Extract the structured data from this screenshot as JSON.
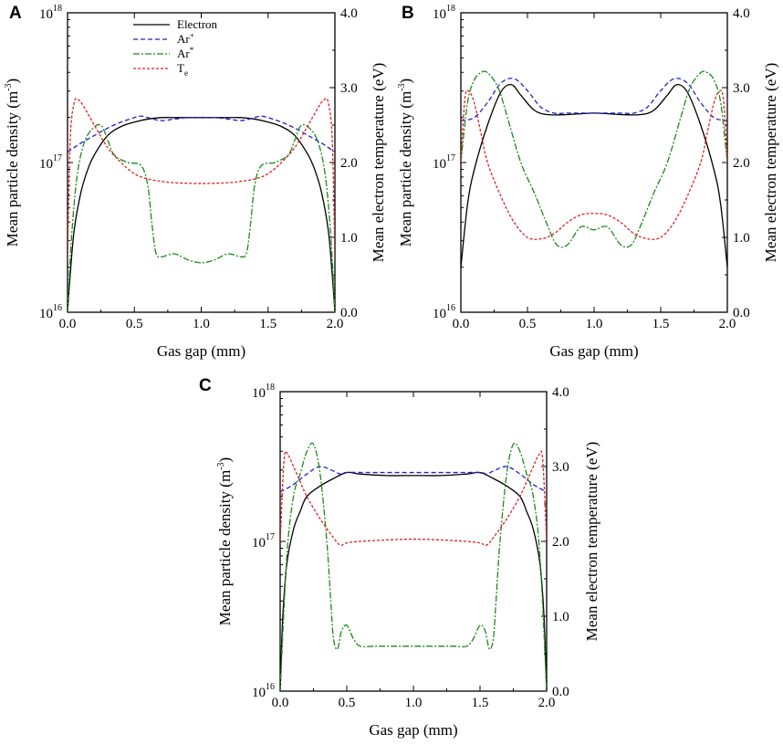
{
  "figure": {
    "legend": {
      "electron": "Electron",
      "ar_ion_base": "Ar",
      "ar_ion_sup": "+",
      "ar_meta_base": "Ar",
      "ar_meta_sup": "*",
      "te_base": "T",
      "te_sub": "e"
    },
    "colors": {
      "electron": "#000000",
      "ar_ion": "#1f1fcf",
      "ar_meta": "#1a8a1a",
      "te": "#e02020"
    }
  },
  "chart_data": [
    {
      "panel": "A",
      "type": "line",
      "xlabel": "Gas gap (mm)",
      "ylabel_left": "Mean particle density (m",
      "ylabel_left_sup": "-3",
      "ylabel_left_close": ")",
      "ylabel_right": "Mean electron temperature (eV)",
      "xlim": [
        0,
        2
      ],
      "y_left_log": [
        16,
        18
      ],
      "ylim_right": [
        0,
        4
      ],
      "xticks": [
        "0.0",
        "0.5",
        "1.0",
        "1.5",
        "2.0"
      ],
      "yticks_left": [
        {
          "base": "10",
          "exp": "16"
        },
        {
          "base": "10",
          "exp": "17"
        },
        {
          "base": "10",
          "exp": "18"
        }
      ],
      "yticks_right": [
        "0.0",
        "1.0",
        "2.0",
        "3.0",
        "4.0"
      ],
      "series": [
        {
          "name": "Electron",
          "axis": "left",
          "style": "solid",
          "x": [
            0,
            0.02,
            0.05,
            0.1,
            0.15,
            0.2,
            0.3,
            0.4,
            0.5,
            0.6,
            0.7,
            0.8,
            0.9,
            1.0
          ],
          "y": [
            16.0,
            16.25,
            16.55,
            16.8,
            16.95,
            17.05,
            17.18,
            17.24,
            17.27,
            17.29,
            17.3,
            17.3,
            17.3,
            17.3
          ]
        },
        {
          "name": "Ar+",
          "axis": "left",
          "style": "dashed",
          "x": [
            0,
            0.05,
            0.1,
            0.2,
            0.3,
            0.4,
            0.5,
            0.55,
            0.6,
            0.7,
            0.8,
            0.9,
            1.0
          ],
          "y": [
            17.07,
            17.1,
            17.13,
            17.18,
            17.23,
            17.27,
            17.3,
            17.31,
            17.3,
            17.28,
            17.29,
            17.3,
            17.3
          ]
        },
        {
          "name": "Ar*",
          "axis": "left",
          "style": "dashdot",
          "x": [
            0,
            0.03,
            0.07,
            0.12,
            0.18,
            0.25,
            0.3,
            0.35,
            0.45,
            0.55,
            0.6,
            0.63,
            0.66,
            0.7,
            0.8,
            0.9,
            1.0
          ],
          "y": [
            16.0,
            16.5,
            16.9,
            17.12,
            17.22,
            17.25,
            17.15,
            17.05,
            17.0,
            16.98,
            16.85,
            16.6,
            16.4,
            16.37,
            16.39,
            16.35,
            16.33
          ]
        },
        {
          "name": "Te",
          "axis": "right",
          "style": "dotted",
          "x": [
            0,
            0.02,
            0.05,
            0.08,
            0.12,
            0.2,
            0.3,
            0.4,
            0.5,
            0.6,
            0.7,
            0.8,
            1.0
          ],
          "y": [
            0.7,
            2.3,
            2.8,
            2.84,
            2.75,
            2.5,
            2.2,
            2.0,
            1.85,
            1.78,
            1.75,
            1.73,
            1.72
          ]
        }
      ]
    },
    {
      "panel": "B",
      "type": "line",
      "xlabel": "Gas gap (mm)",
      "ylabel_left": "Mean particle density (m",
      "ylabel_left_sup": "-3",
      "ylabel_left_close": ")",
      "ylabel_right": "Mean electron temperature (eV)",
      "xlim": [
        0,
        2
      ],
      "y_left_log": [
        16,
        18
      ],
      "ylim_right": [
        0,
        4
      ],
      "xticks": [
        "0.0",
        "0.5",
        "1.0",
        "1.5",
        "2.0"
      ],
      "yticks_left": [
        {
          "base": "10",
          "exp": "16"
        },
        {
          "base": "10",
          "exp": "17"
        },
        {
          "base": "10",
          "exp": "18"
        }
      ],
      "yticks_right": [
        "0.0",
        "1.0",
        "2.0",
        "3.0",
        "4.0"
      ],
      "series": [
        {
          "name": "Electron",
          "axis": "left",
          "style": "solid",
          "x": [
            0,
            0.05,
            0.1,
            0.2,
            0.3,
            0.38,
            0.45,
            0.55,
            0.65,
            0.8,
            1.0
          ],
          "y": [
            16.3,
            16.72,
            16.95,
            17.25,
            17.47,
            17.52,
            17.45,
            17.35,
            17.32,
            17.32,
            17.33
          ]
        },
        {
          "name": "Ar+",
          "axis": "left",
          "style": "dashed",
          "x": [
            0,
            0.1,
            0.2,
            0.3,
            0.4,
            0.5,
            0.6,
            0.7,
            0.8,
            1.0
          ],
          "y": [
            17.28,
            17.3,
            17.4,
            17.53,
            17.56,
            17.48,
            17.37,
            17.33,
            17.33,
            17.33
          ]
        },
        {
          "name": "Ar*",
          "axis": "left",
          "style": "dashdot",
          "x": [
            0,
            0.05,
            0.1,
            0.15,
            0.2,
            0.28,
            0.35,
            0.45,
            0.55,
            0.65,
            0.72,
            0.8,
            0.9,
            1.0
          ],
          "y": [
            17.0,
            17.4,
            17.55,
            17.6,
            17.6,
            17.5,
            17.3,
            17.0,
            16.8,
            16.58,
            16.45,
            16.45,
            16.57,
            16.55
          ]
        },
        {
          "name": "Te",
          "axis": "right",
          "style": "dotted",
          "x": [
            0,
            0.03,
            0.06,
            0.1,
            0.15,
            0.2,
            0.3,
            0.4,
            0.5,
            0.6,
            0.7,
            0.8,
            0.9,
            1.0
          ],
          "y": [
            2.0,
            2.85,
            2.95,
            2.8,
            2.4,
            2.0,
            1.55,
            1.2,
            1.0,
            0.98,
            1.05,
            1.2,
            1.3,
            1.32
          ]
        }
      ]
    },
    {
      "panel": "C",
      "type": "line",
      "xlabel": "Gas gap (mm)",
      "ylabel_left": "Mean particle density (m",
      "ylabel_left_sup": "-3",
      "ylabel_left_close": ")",
      "ylabel_right": "Mean electron temperature (eV)",
      "xlim": [
        0,
        2
      ],
      "y_left_log": [
        16,
        18
      ],
      "ylim_right": [
        0,
        4
      ],
      "xticks": [
        "0.0",
        "0.5",
        "1.0",
        "1.5",
        "2.0"
      ],
      "yticks_left": [
        {
          "base": "10",
          "exp": "16"
        },
        {
          "base": "10",
          "exp": "17"
        },
        {
          "base": "10",
          "exp": "18"
        }
      ],
      "yticks_right": [
        "0.0",
        "1.0",
        "2.0",
        "3.0",
        "4.0"
      ],
      "series": [
        {
          "name": "Electron",
          "axis": "left",
          "style": "solid",
          "x": [
            0,
            0.02,
            0.05,
            0.1,
            0.15,
            0.2,
            0.3,
            0.4,
            0.5,
            0.6,
            0.8,
            1.0
          ],
          "y": [
            16.0,
            16.5,
            16.85,
            17.08,
            17.2,
            17.3,
            17.37,
            17.42,
            17.46,
            17.45,
            17.44,
            17.44
          ]
        },
        {
          "name": "Ar+",
          "axis": "left",
          "style": "dashed",
          "x": [
            0,
            0.1,
            0.2,
            0.3,
            0.4,
            0.45,
            0.5,
            0.7,
            1.0
          ],
          "y": [
            17.33,
            17.38,
            17.45,
            17.5,
            17.47,
            17.45,
            17.46,
            17.46,
            17.46
          ]
        },
        {
          "name": "Ar*",
          "axis": "left",
          "style": "dashdot",
          "x": [
            0,
            0.05,
            0.1,
            0.15,
            0.2,
            0.25,
            0.3,
            0.35,
            0.38,
            0.4,
            0.43,
            0.46,
            0.5,
            0.55,
            0.6,
            0.7,
            0.8,
            0.9,
            1.0
          ],
          "y": [
            16.0,
            16.9,
            17.3,
            17.45,
            17.6,
            17.65,
            17.45,
            17.0,
            16.6,
            16.35,
            16.28,
            16.4,
            16.44,
            16.35,
            16.3,
            16.3,
            16.3,
            16.3,
            16.3
          ]
        },
        {
          "name": "Te",
          "axis": "right",
          "style": "dotted",
          "x": [
            0,
            0.03,
            0.06,
            0.1,
            0.15,
            0.2,
            0.3,
            0.4,
            0.45,
            0.5,
            0.6,
            0.8,
            1.0
          ],
          "y": [
            2.0,
            3.1,
            3.15,
            3.0,
            2.8,
            2.6,
            2.3,
            2.05,
            1.95,
            1.98,
            2.0,
            2.02,
            2.03
          ]
        }
      ]
    }
  ]
}
